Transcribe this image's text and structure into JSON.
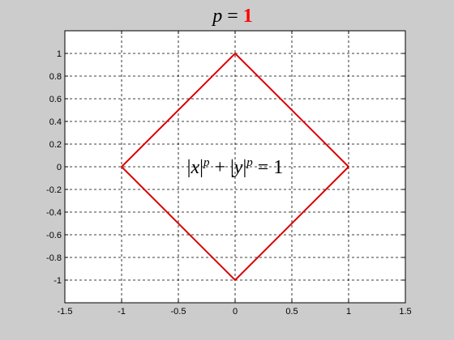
{
  "figure": {
    "background": "#cccccc",
    "axes_background": "#ffffff"
  },
  "chart_data": {
    "type": "line",
    "title": {
      "variable": "p",
      "equals": " = ",
      "value": "1",
      "value_color": "#ff0000"
    },
    "xlabel": "",
    "ylabel": "",
    "xlim": [
      -1.5,
      1.5
    ],
    "ylim": [
      -1.2,
      1.2
    ],
    "grid": true,
    "grid_style": "dashed",
    "x_ticks": [
      -1.5,
      -1,
      -0.5,
      0,
      0.5,
      1,
      1.5
    ],
    "x_tick_labels": [
      "-1.5",
      "-1",
      "-0.5",
      "0",
      "0.5",
      "1",
      "1.5"
    ],
    "y_ticks": [
      -1,
      -0.8,
      -0.6,
      -0.4,
      -0.2,
      0,
      0.2,
      0.4,
      0.6,
      0.8,
      1
    ],
    "y_tick_labels": [
      "-1",
      "-0.8",
      "-0.6",
      "-0.4",
      "-0.2",
      "0",
      "0.2",
      "0.4",
      "0.6",
      "0.8",
      "1"
    ],
    "series": [
      {
        "color": "#dd0000",
        "x": [
          1,
          0,
          -1,
          0,
          1
        ],
        "y": [
          0,
          1,
          0,
          -1,
          0
        ]
      }
    ],
    "annotation": {
      "text": "|x|ᵖ + |y|ᵖ = 1",
      "parts": [
        "|",
        "x",
        "|",
        "p",
        " + |",
        "y",
        "|",
        "p",
        " = 1"
      ],
      "x": 0,
      "y": 0
    }
  }
}
